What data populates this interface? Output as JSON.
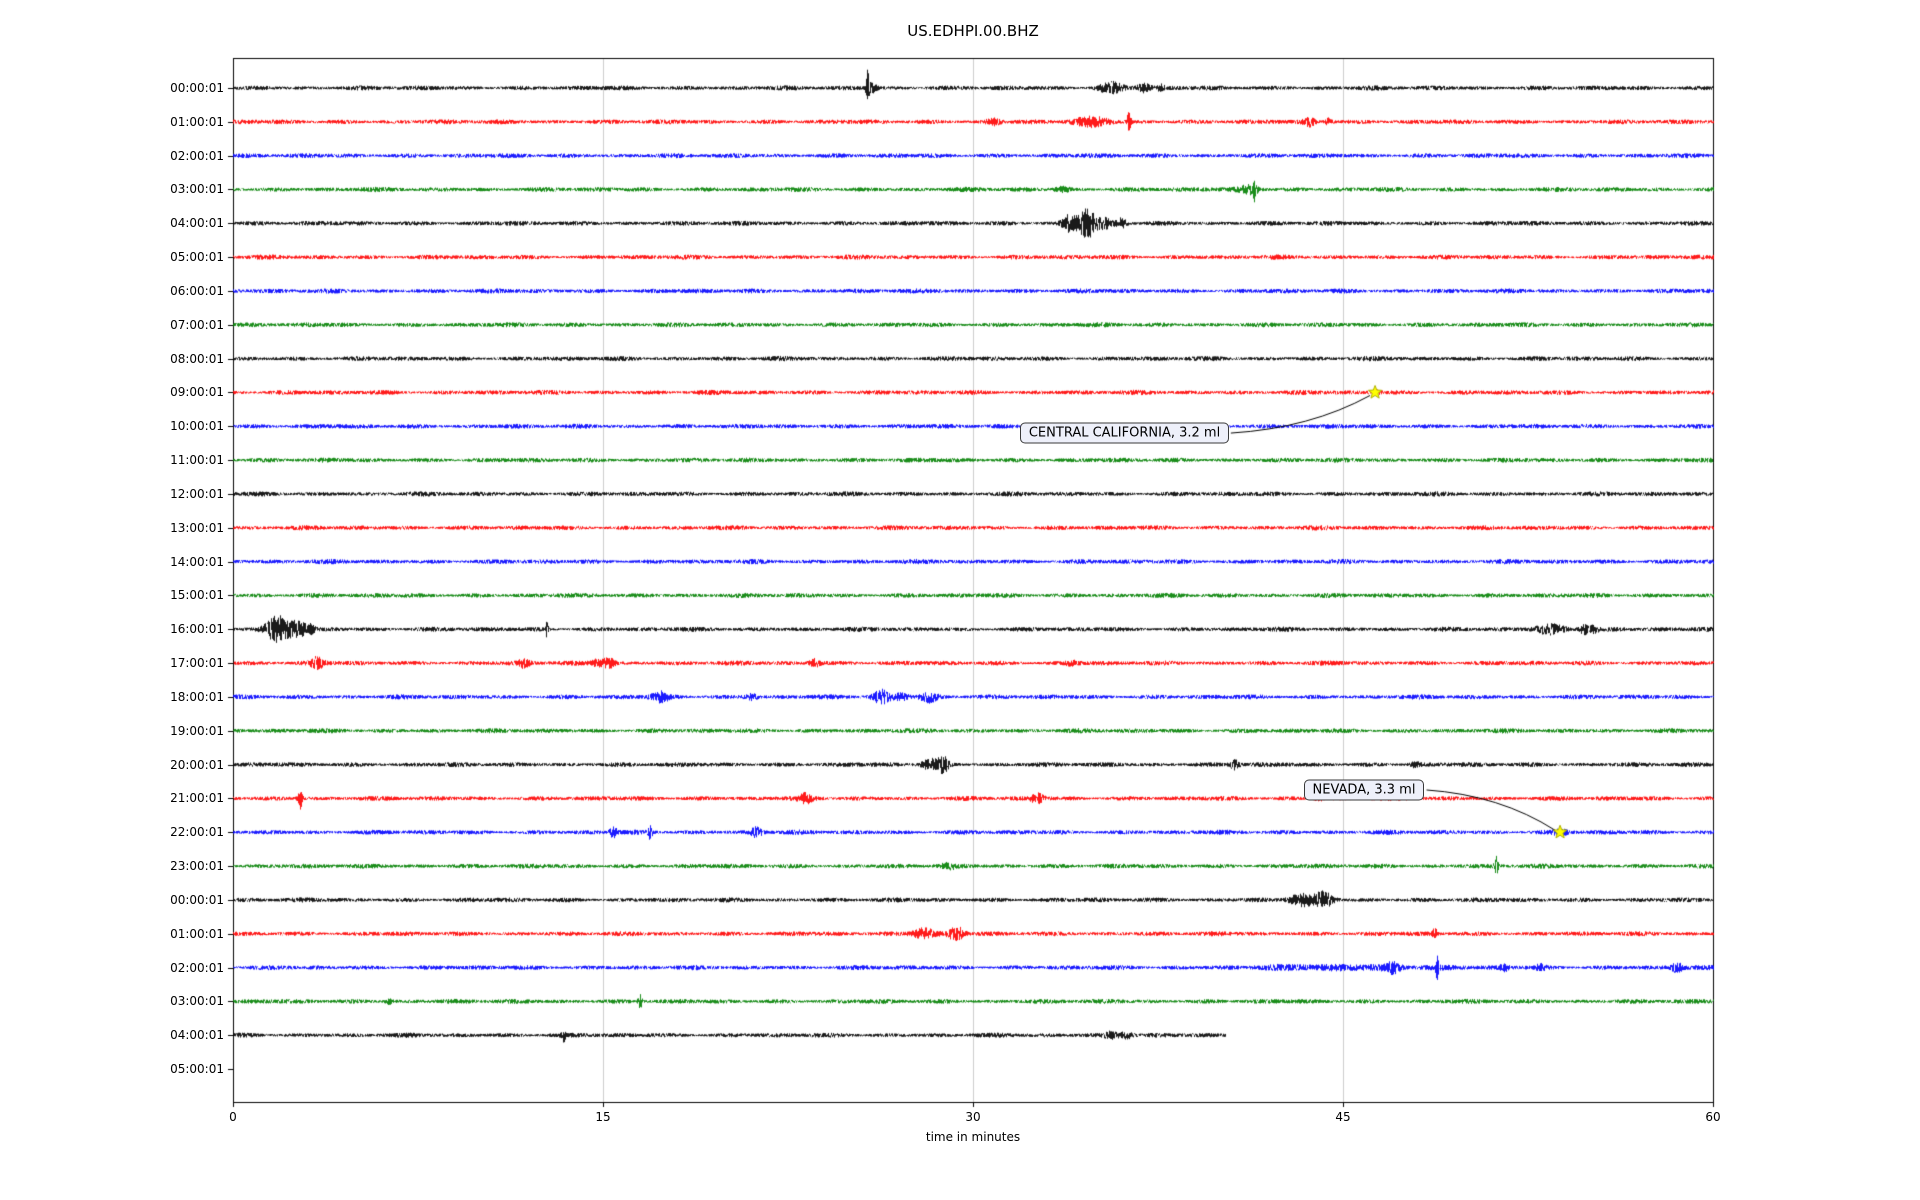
{
  "title": "US.EDHPI.00.BHZ",
  "chart_data": {
    "type": "line",
    "subtype": "seismogram-helicorder",
    "title": "US.EDHPI.00.BHZ",
    "xlabel": "time in minutes",
    "x_range": [
      0,
      60
    ],
    "x_ticks": [
      0,
      15,
      30,
      45,
      60
    ],
    "grid_minutes": [
      15,
      30,
      45
    ],
    "base_amp": 1.9,
    "rows": [
      {
        "label": "00:00:01",
        "color": "#000000",
        "end": 60,
        "bursts": [
          [
            25.7,
            16,
            0.07
          ],
          [
            25.9,
            5,
            0.18
          ],
          [
            35.6,
            5,
            0.5
          ],
          [
            36.9,
            4,
            0.3
          ],
          [
            37.6,
            3,
            0.15
          ]
        ]
      },
      {
        "label": "01:00:01",
        "color": "#ff0000",
        "end": 60,
        "bursts": [
          [
            30.8,
            3,
            0.3
          ],
          [
            34.8,
            4.5,
            0.7
          ],
          [
            36.3,
            9,
            0.09
          ],
          [
            43.6,
            4.5,
            0.25
          ],
          [
            44.4,
            3.5,
            0.15
          ]
        ]
      },
      {
        "label": "02:00:01",
        "color": "#0000ff",
        "end": 60,
        "bursts": []
      },
      {
        "label": "03:00:01",
        "color": "#008000",
        "end": 60,
        "bursts": [
          [
            33.6,
            2.2,
            0.3
          ],
          [
            41.2,
            4.5,
            0.45
          ],
          [
            41.4,
            10,
            0.07
          ]
        ]
      },
      {
        "label": "04:00:01",
        "color": "#000000",
        "end": 60,
        "bursts": [
          [
            33.9,
            8,
            0.3
          ],
          [
            34.6,
            15,
            0.35
          ],
          [
            35.3,
            5,
            0.3
          ],
          [
            36.0,
            4,
            0.2
          ]
        ]
      },
      {
        "label": "05:00:01",
        "color": "#ff0000",
        "end": 60,
        "bursts": []
      },
      {
        "label": "06:00:01",
        "color": "#0000ff",
        "end": 60,
        "bursts": []
      },
      {
        "label": "07:00:01",
        "color": "#008000",
        "end": 60,
        "bursts": []
      },
      {
        "label": "08:00:01",
        "color": "#000000",
        "end": 60,
        "bursts": []
      },
      {
        "label": "09:00:01",
        "color": "#ff0000",
        "end": 60,
        "bursts": [
          [
            46.3,
            2,
            0.2
          ]
        ]
      },
      {
        "label": "10:00:01",
        "color": "#0000ff",
        "end": 60,
        "bursts": []
      },
      {
        "label": "11:00:01",
        "color": "#008000",
        "end": 60,
        "bursts": []
      },
      {
        "label": "12:00:01",
        "color": "#000000",
        "end": 60,
        "bursts": []
      },
      {
        "label": "13:00:01",
        "color": "#ff0000",
        "end": 60,
        "bursts": []
      },
      {
        "label": "14:00:01",
        "color": "#0000ff",
        "end": 60,
        "bursts": []
      },
      {
        "label": "15:00:01",
        "color": "#008000",
        "end": 60,
        "bursts": []
      },
      {
        "label": "16:00:01",
        "color": "#000000",
        "end": 60,
        "bursts": [
          [
            1.8,
            12,
            0.45
          ],
          [
            2.6,
            8,
            0.35
          ],
          [
            3.1,
            4,
            0.2
          ],
          [
            12.7,
            7,
            0.06
          ],
          [
            53.4,
            4.5,
            0.6
          ],
          [
            54.8,
            5,
            0.25
          ],
          [
            55.2,
            3,
            0.15
          ]
        ]
      },
      {
        "label": "17:00:01",
        "color": "#ff0000",
        "end": 60,
        "bursts": [
          [
            3.4,
            5.5,
            0.25
          ],
          [
            11.8,
            4.5,
            0.2
          ],
          [
            14.9,
            4.5,
            0.35
          ],
          [
            15.3,
            3,
            0.2
          ],
          [
            23.6,
            4,
            0.25
          ],
          [
            34.0,
            2,
            0.3
          ]
        ]
      },
      {
        "label": "18:00:01",
        "color": "#0000ff",
        "end": 60,
        "bursts": [
          [
            17.3,
            4.5,
            0.35
          ],
          [
            21.0,
            3,
            0.25
          ],
          [
            26.3,
            6.5,
            0.35
          ],
          [
            27.1,
            3,
            0.3
          ],
          [
            28.2,
            5.5,
            0.35
          ]
        ]
      },
      {
        "label": "19:00:01",
        "color": "#008000",
        "end": 60,
        "bursts": []
      },
      {
        "label": "20:00:01",
        "color": "#000000",
        "end": 60,
        "bursts": [
          [
            28.3,
            5,
            0.4
          ],
          [
            28.8,
            7,
            0.2
          ],
          [
            40.6,
            5,
            0.18
          ],
          [
            47.9,
            2.2,
            0.2
          ]
        ]
      },
      {
        "label": "21:00:01",
        "color": "#ff0000",
        "end": 60,
        "bursts": [
          [
            2.7,
            14,
            0.09
          ],
          [
            23.2,
            4,
            0.25
          ],
          [
            32.6,
            4.5,
            0.25
          ],
          [
            44.0,
            2.2,
            0.2
          ]
        ]
      },
      {
        "label": "22:00:01",
        "color": "#0000ff",
        "end": 60,
        "bursts": [
          [
            15.4,
            5,
            0.15
          ],
          [
            16.9,
            7,
            0.1
          ],
          [
            21.2,
            4.5,
            0.25
          ],
          [
            53.8,
            2.5,
            0.3
          ]
        ]
      },
      {
        "label": "23:00:01",
        "color": "#008000",
        "end": 60,
        "bursts": [
          [
            29.0,
            2.2,
            0.3
          ],
          [
            51.2,
            9,
            0.08
          ]
        ]
      },
      {
        "label": "00:00:01",
        "color": "#000000",
        "end": 60,
        "bursts": [
          [
            43.3,
            5.5,
            0.5
          ],
          [
            44.2,
            7,
            0.35
          ]
        ]
      },
      {
        "label": "01:00:01",
        "color": "#ff0000",
        "end": 60,
        "bursts": [
          [
            28.0,
            5.5,
            0.5
          ],
          [
            29.3,
            7,
            0.3
          ],
          [
            48.7,
            5.5,
            0.09
          ]
        ]
      },
      {
        "label": "02:00:01",
        "color": "#0000ff",
        "end": 60,
        "bursts": [
          [
            45.0,
            1.8,
            3.5
          ],
          [
            47.0,
            4.5,
            0.3
          ],
          [
            48.8,
            10,
            0.07
          ],
          [
            51.5,
            3,
            0.2
          ],
          [
            53.0,
            2.5,
            0.2
          ],
          [
            58.5,
            4.5,
            0.25
          ]
        ]
      },
      {
        "label": "03:00:01",
        "color": "#008000",
        "end": 60,
        "bursts": [
          [
            6.3,
            2.5,
            0.15
          ],
          [
            16.5,
            7,
            0.09
          ]
        ]
      },
      {
        "label": "04:00:01",
        "color": "#000000",
        "end": 40.2,
        "bursts": [
          [
            13.4,
            5.5,
            0.07
          ],
          [
            35.6,
            3.5,
            0.3
          ],
          [
            36.2,
            3.5,
            0.25
          ]
        ]
      },
      {
        "label": "05:00:01",
        "color": "#ff0000",
        "end": 0,
        "bursts": []
      }
    ],
    "events": [
      {
        "text": "CENTRAL CALIFORNIA, 3.2 ml",
        "star": {
          "row": 9,
          "min": 46.3
        },
        "box": {
          "row": 10.2,
          "min": 31.9
        },
        "star_color": "#ffff00"
      },
      {
        "text": "NEVADA, 3.3 ml",
        "star": {
          "row": 22,
          "min": 53.8
        },
        "box": {
          "row": 20.75,
          "min": 43.4
        },
        "star_color": "#ffff00"
      }
    ]
  }
}
